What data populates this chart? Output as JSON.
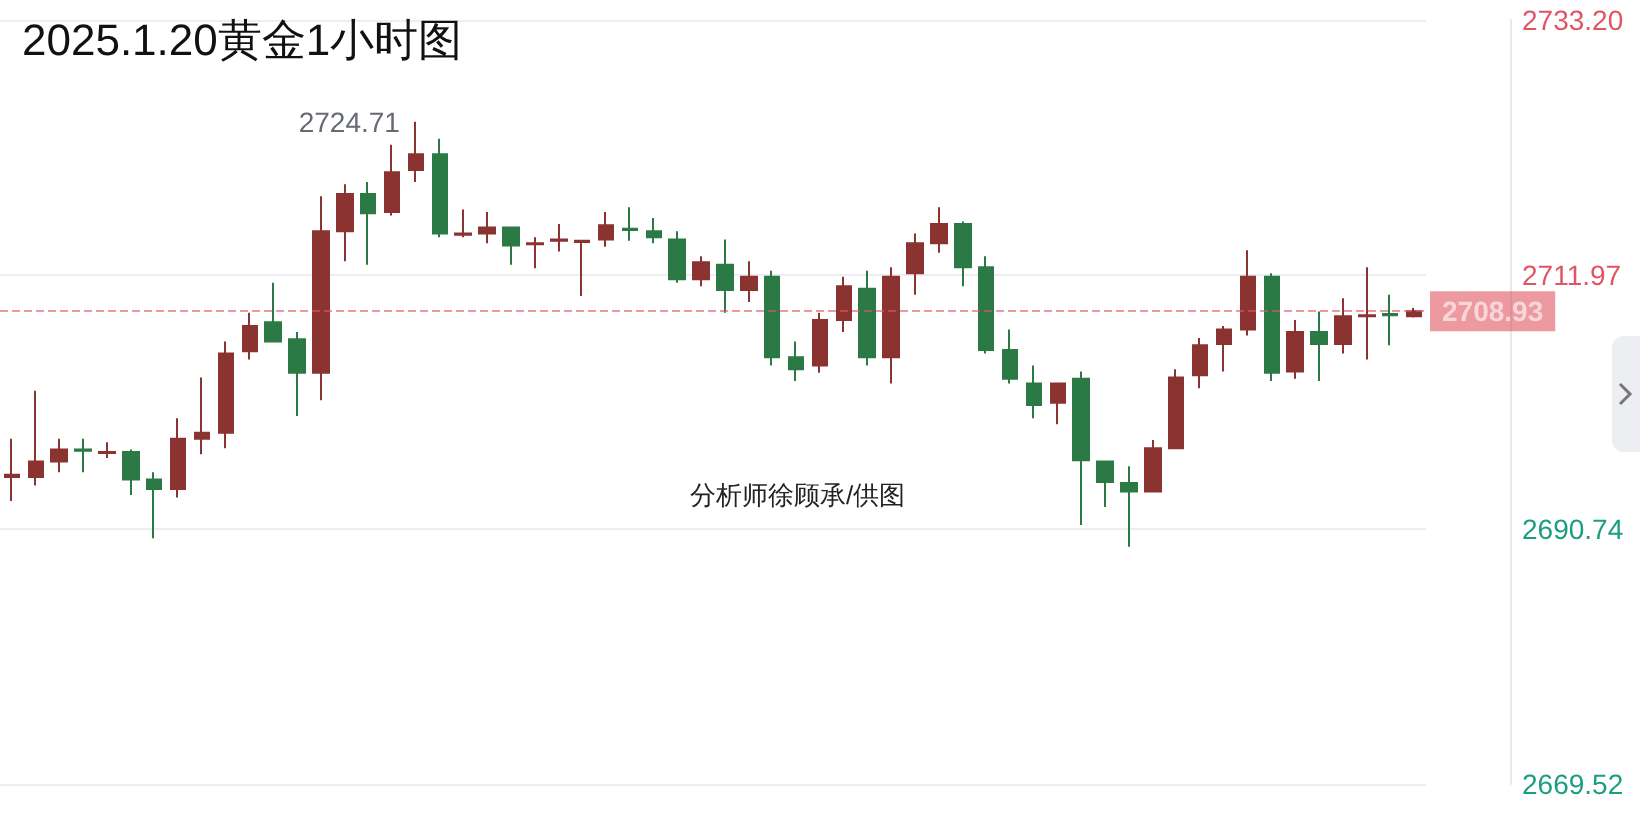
{
  "chart_data": {
    "type": "candlestick",
    "title": "2025.1.20黄金1小时图",
    "categories": [
      null,
      null,
      null,
      null,
      null,
      null,
      null,
      null,
      null,
      null,
      null,
      null,
      null,
      null,
      null,
      null,
      null,
      null,
      null,
      null,
      null,
      null,
      null,
      null,
      null,
      null,
      null,
      null,
      null,
      null,
      null,
      null,
      null,
      null,
      null,
      null,
      null,
      null,
      null,
      null,
      null,
      null,
      null,
      null,
      null,
      null,
      null,
      null,
      null,
      null,
      null,
      null,
      null,
      null,
      null,
      null,
      null,
      null,
      null,
      null
    ],
    "ohlc": [
      [
        2695.1,
        2698.3,
        2693.1,
        2695.3
      ],
      [
        2695.1,
        2702.3,
        2694.4,
        2696.4
      ],
      [
        2696.4,
        2698.3,
        2695.5,
        2697.4
      ],
      [
        2697.4,
        2698.3,
        2695.5,
        2697.3
      ],
      [
        2697.1,
        2698.0,
        2696.7,
        2697.2
      ],
      [
        2697.2,
        2697.4,
        2693.6,
        2694.9
      ],
      [
        2694.9,
        2695.5,
        2690.0,
        2694.1
      ],
      [
        2694.1,
        2700.0,
        2693.4,
        2698.3
      ],
      [
        2698.3,
        2703.4,
        2697.0,
        2698.8
      ],
      [
        2698.8,
        2706.4,
        2697.5,
        2705.4
      ],
      [
        2705.6,
        2708.8,
        2704.9,
        2707.7
      ],
      [
        2708.0,
        2711.3,
        2706.4,
        2706.4
      ],
      [
        2706.6,
        2707.2,
        2700.2,
        2703.8
      ],
      [
        2703.8,
        2718.5,
        2701.5,
        2715.6
      ],
      [
        2715.6,
        2719.5,
        2713.1,
        2718.7
      ],
      [
        2718.7,
        2719.7,
        2712.8,
        2717.1
      ],
      [
        2717.2,
        2722.8,
        2716.9,
        2720.5
      ],
      [
        2720.7,
        2724.71,
        2719.7,
        2722.0
      ],
      [
        2722.0,
        2723.3,
        2715.1,
        2715.4
      ],
      [
        2715.3,
        2717.4,
        2715.1,
        2715.4
      ],
      [
        2715.4,
        2717.2,
        2714.6,
        2715.9
      ],
      [
        2715.9,
        2715.9,
        2712.8,
        2714.4
      ],
      [
        2714.5,
        2715.1,
        2712.5,
        2714.6
      ],
      [
        2714.8,
        2716.2,
        2713.9,
        2714.9
      ],
      [
        2714.7,
        2714.8,
        2710.2,
        2714.8
      ],
      [
        2714.9,
        2717.2,
        2714.3,
        2716.1
      ],
      [
        2715.8,
        2717.6,
        2714.8,
        2715.7
      ],
      [
        2715.6,
        2716.7,
        2714.6,
        2715.1
      ],
      [
        2714.9,
        2715.6,
        2711.3,
        2711.6
      ],
      [
        2711.6,
        2713.5,
        2711.0,
        2713.0
      ],
      [
        2712.8,
        2714.9,
        2708.8,
        2710.7
      ],
      [
        2710.7,
        2713.1,
        2709.7,
        2711.8
      ],
      [
        2711.8,
        2712.3,
        2704.4,
        2705.1
      ],
      [
        2705.1,
        2706.4,
        2703.1,
        2704.1
      ],
      [
        2704.4,
        2708.8,
        2703.8,
        2708.2
      ],
      [
        2708.2,
        2711.8,
        2707.2,
        2711.0
      ],
      [
        2710.8,
        2712.3,
        2704.4,
        2705.1
      ],
      [
        2705.1,
        2712.6,
        2702.9,
        2711.8
      ],
      [
        2712.1,
        2715.4,
        2710.3,
        2714.6
      ],
      [
        2714.6,
        2717.6,
        2713.8,
        2716.2
      ],
      [
        2716.2,
        2716.4,
        2711.0,
        2712.6
      ],
      [
        2712.6,
        2713.5,
        2705.4,
        2705.7
      ],
      [
        2705.7,
        2707.4,
        2702.9,
        2703.3
      ],
      [
        2702.9,
        2704.4,
        2700.0,
        2701.1
      ],
      [
        2701.3,
        2702.9,
        2699.5,
        2702.9
      ],
      [
        2703.3,
        2703.9,
        2691.1,
        2696.5
      ],
      [
        2696.4,
        2696.4,
        2692.6,
        2694.7
      ],
      [
        2694.6,
        2696.0,
        2689.3,
        2693.9
      ],
      [
        2693.9,
        2698.2,
        2693.9,
        2697.5
      ],
      [
        2697.5,
        2704.1,
        2697.5,
        2703.4
      ],
      [
        2703.6,
        2706.7,
        2702.5,
        2706.1
      ],
      [
        2706.2,
        2707.7,
        2703.9,
        2707.4
      ],
      [
        2707.4,
        2714.0,
        2706.9,
        2711.8
      ],
      [
        2711.8,
        2712.1,
        2703.1,
        2703.8
      ],
      [
        2703.9,
        2708.2,
        2703.3,
        2707.2
      ],
      [
        2707.2,
        2708.9,
        2703.1,
        2706.2
      ],
      [
        2706.2,
        2710.0,
        2705.4,
        2708.5
      ],
      [
        2708.5,
        2712.6,
        2704.9,
        2708.6
      ],
      [
        2708.7,
        2710.3,
        2706.1,
        2708.6
      ],
      [
        2708.5,
        2709.2,
        2708.4,
        2708.93
      ]
    ],
    "colors": [
      "#8b3330",
      "#8b3330",
      "#8b3330",
      "#2b7a45",
      "#8b3330",
      "#2b7a45",
      "#2b7a45",
      "#8b3330",
      "#8b3330",
      "#8b3330",
      "#8b3330",
      "#2b7a45",
      "#2b7a45",
      "#8b3330",
      "#8b3330",
      "#2b7a45",
      "#8b3330",
      "#8b3330",
      "#2b7a45",
      "#8b3330",
      "#8b3330",
      "#2b7a45",
      "#8b3330",
      "#8b3330",
      "#8b3330",
      "#8b3330",
      "#2b7a45",
      "#2b7a45",
      "#2b7a45",
      "#8b3330",
      "#2b7a45",
      "#8b3330",
      "#2b7a45",
      "#2b7a45",
      "#8b3330",
      "#8b3330",
      "#2b7a45",
      "#8b3330",
      "#8b3330",
      "#8b3330",
      "#2b7a45",
      "#2b7a45",
      "#2b7a45",
      "#2b7a45",
      "#8b3330",
      "#2b7a45",
      "#2b7a45",
      "#2b7a45",
      "#8b3330",
      "#8b3330",
      "#8b3330",
      "#8b3330",
      "#8b3330",
      "#2b7a45",
      "#8b3330",
      "#2b7a45",
      "#8b3330",
      "#8b3330",
      "#2b7a45",
      "#8b3330"
    ],
    "ylim": [
      2669.52,
      2733.2
    ],
    "yticks": [
      2669.52,
      2690.74,
      2711.97,
      {
        "value": 2733.2,
        "label": "2733.20"
      }
    ],
    "grid": "y",
    "tick_labels": "y",
    "ref_lines": [
      {
        "axis": "y",
        "value": 2708.93,
        "label": "2708.93",
        "color": "#e05561",
        "line_style": "dashed"
      }
    ],
    "annotations": [
      "2724.71",
      "分析师徐顾承/供图"
    ]
  }
}
